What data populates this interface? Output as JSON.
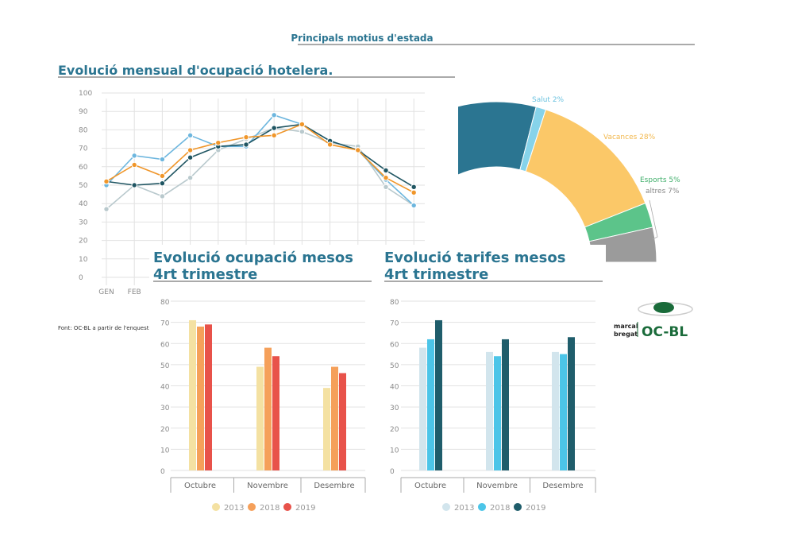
{
  "header": {
    "title": "Principals motius d'estada"
  },
  "source_note": "Font: OC-BL a partir de l'enquesta pr",
  "logo": {
    "text": "OC-BL",
    "side_line1": "marcal",
    "side_line2": "bregat"
  },
  "chart_data": [
    {
      "type": "line",
      "title": "Evolució mensual d'ocupació hotelera.",
      "categories": [
        "GEN",
        "FEB",
        "",
        "",
        "",
        "",
        "",
        "",
        "",
        "",
        "",
        ""
      ],
      "ylim": [
        0,
        100
      ],
      "yticks": [
        0,
        10,
        20,
        30,
        40,
        50,
        60,
        70,
        80,
        90,
        100
      ],
      "grid": true,
      "series": [
        {
          "color": "#b9c9cd",
          "values": [
            37,
            50,
            44,
            54,
            69,
            75,
            81,
            79,
            73,
            71,
            49,
            39
          ]
        },
        {
          "color": "#6db6de",
          "values": [
            50,
            66,
            64,
            77,
            71,
            71,
            88,
            83,
            74,
            69,
            53,
            39
          ]
        },
        {
          "color": "#1f5562",
          "values": [
            52,
            50,
            51,
            65,
            71,
            72,
            81,
            83,
            74,
            69,
            58,
            49
          ]
        },
        {
          "color": "#f0962a",
          "values": [
            52,
            61,
            55,
            69,
            73,
            76,
            77,
            83,
            72,
            69,
            54,
            46
          ]
        }
      ]
    },
    {
      "type": "pie",
      "style": "half-donut",
      "slices": [
        {
          "label": "",
          "value": 55,
          "color": "#2b7591"
        },
        {
          "label": "Salut 2%",
          "value": 2,
          "color": "#86d3ea"
        },
        {
          "label": "Vacances 28%",
          "value": 28,
          "color": "#fbc868"
        },
        {
          "label": "Esports 5%",
          "value": 5,
          "color": "#5cc48a"
        },
        {
          "label": "altres 7%",
          "value": 7,
          "color": "#9b9b9b"
        }
      ]
    },
    {
      "type": "bar",
      "title_line1": "Evolució ocupació mesos",
      "title_line2": "4rt trimestre",
      "categories": [
        "Octubre",
        "Novembre",
        "Desembre"
      ],
      "ylim": [
        0,
        80
      ],
      "yticks": [
        0,
        10,
        20,
        30,
        40,
        50,
        60,
        70,
        80
      ],
      "series": [
        {
          "name": "2013",
          "color": "#f4e1a2",
          "values": [
            71,
            49,
            39
          ]
        },
        {
          "name": "2018",
          "color": "#f5a05a",
          "values": [
            68,
            58,
            49
          ]
        },
        {
          "name": "2019",
          "color": "#e8524a",
          "values": [
            69,
            54,
            46
          ]
        }
      ]
    },
    {
      "type": "bar",
      "title_line1": "Evolució tarifes mesos",
      "title_line2": "4rt trimestre",
      "categories": [
        "Octubre",
        "Novembre",
        "Desembre"
      ],
      "ylim": [
        0,
        80
      ],
      "yticks": [
        0,
        10,
        20,
        30,
        40,
        50,
        60,
        70,
        80
      ],
      "series": [
        {
          "name": "2013",
          "color": "#d2e5ed",
          "values": [
            58,
            56,
            56
          ]
        },
        {
          "name": "2018",
          "color": "#4cc5e8",
          "values": [
            62,
            54,
            55
          ]
        },
        {
          "name": "2019",
          "color": "#1f5d6b",
          "values": [
            71,
            62,
            63
          ]
        }
      ]
    }
  ]
}
